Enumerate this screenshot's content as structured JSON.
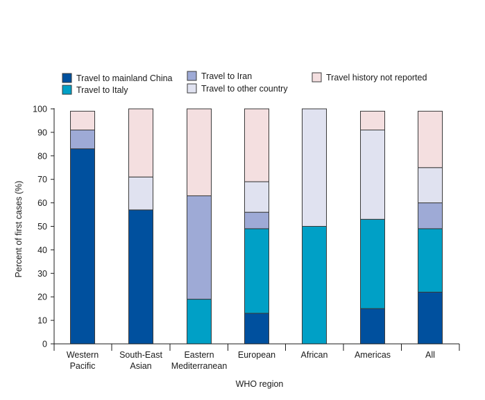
{
  "chart_data": {
    "type": "bar",
    "stacked": true,
    "title": "",
    "xlabel": "WHO region",
    "ylabel": "Percent of first cases (%)",
    "ylim": [
      0,
      100
    ],
    "yticks": [
      0,
      10,
      20,
      30,
      40,
      50,
      60,
      70,
      80,
      90,
      100
    ],
    "grid": false,
    "legend_position": "top",
    "categories": [
      [
        "Western",
        "Pacific"
      ],
      [
        "South-East",
        "Asian"
      ],
      [
        "Eastern",
        "Mediterranean"
      ],
      [
        "European"
      ],
      [
        "African"
      ],
      [
        "Americas"
      ],
      [
        "All"
      ]
    ],
    "series": [
      {
        "name": "Travel to mainland China",
        "color": "#00509e",
        "values": [
          83,
          57,
          0,
          13,
          0,
          15,
          22
        ]
      },
      {
        "name": "Travel to Italy",
        "color": "#00a0c6",
        "values": [
          0,
          0,
          19,
          36,
          50,
          38,
          27
        ]
      },
      {
        "name": "Travel to Iran",
        "color": "#9eaad6",
        "values": [
          8,
          0,
          44,
          7,
          0,
          0,
          11
        ]
      },
      {
        "name": "Travel to other country",
        "color": "#e0e2f0",
        "values": [
          0,
          14,
          0,
          13,
          50,
          38,
          15
        ]
      },
      {
        "name": "Travel history not reported",
        "color": "#f4dfe0",
        "values": [
          8,
          29,
          37,
          31,
          0,
          8,
          24
        ]
      }
    ]
  }
}
